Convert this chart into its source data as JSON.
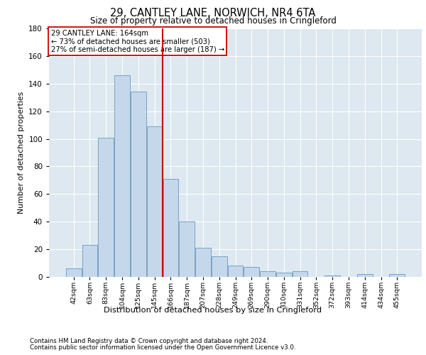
{
  "title": "29, CANTLEY LANE, NORWICH, NR4 6TA",
  "subtitle": "Size of property relative to detached houses in Cringleford",
  "xlabel": "Distribution of detached houses by size in Cringleford",
  "ylabel": "Number of detached properties",
  "bar_labels": [
    "42sqm",
    "63sqm",
    "83sqm",
    "104sqm",
    "125sqm",
    "145sqm",
    "166sqm",
    "187sqm",
    "207sqm",
    "228sqm",
    "249sqm",
    "269sqm",
    "290sqm",
    "310sqm",
    "331sqm",
    "352sqm",
    "372sqm",
    "393sqm",
    "414sqm",
    "434sqm",
    "455sqm"
  ],
  "bar_values": [
    6,
    23,
    101,
    146,
    134,
    109,
    71,
    40,
    21,
    15,
    8,
    7,
    4,
    3,
    4,
    0,
    1,
    0,
    2,
    0,
    2
  ],
  "bar_color": "#c5d8eb",
  "bar_edge_color": "#6899c2",
  "vline_index": 6,
  "vline_color": "#cc0000",
  "annotation_text": "29 CANTLEY LANE: 164sqm\n← 73% of detached houses are smaller (503)\n27% of semi-detached houses are larger (187) →",
  "annotation_box_color": "#cc0000",
  "ylim": [
    0,
    180
  ],
  "yticks": [
    0,
    20,
    40,
    60,
    80,
    100,
    120,
    140,
    160,
    180
  ],
  "background_color": "#dde8f0",
  "footer_line1": "Contains HM Land Registry data © Crown copyright and database right 2024.",
  "footer_line2": "Contains public sector information licensed under the Open Government Licence v3.0."
}
